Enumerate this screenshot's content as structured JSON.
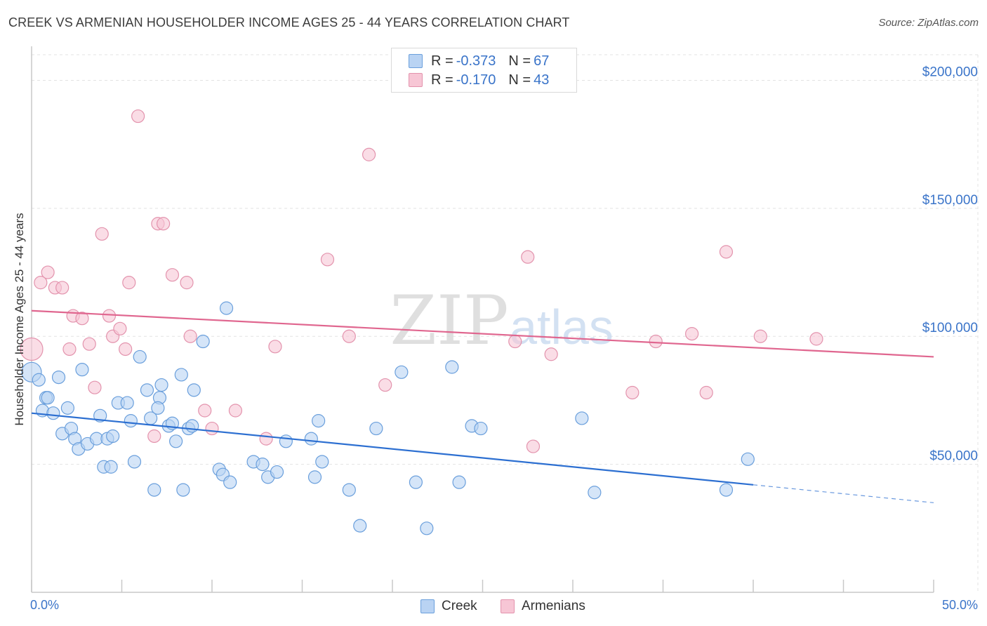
{
  "title": "CREEK VS ARMENIAN HOUSEHOLDER INCOME AGES 25 - 44 YEARS CORRELATION CHART",
  "source": "Source: ZipAtlas.com",
  "watermark": {
    "zip": "ZIP",
    "atlas": "atlas"
  },
  "legend": {
    "r_label": "R =",
    "n_label": "N =",
    "rows": [
      {
        "r": "-0.373",
        "n": "67"
      },
      {
        "r": "-0.170",
        "n": "43"
      }
    ]
  },
  "bottom_legend": [
    "Creek",
    "Armenians"
  ],
  "colors": {
    "creek_fill": "#b9d3f3",
    "creek_stroke": "#6a9fdc",
    "creek_line": "#2c6fd1",
    "arm_fill": "#f7c6d5",
    "arm_stroke": "#e393ad",
    "arm_line": "#e0668f",
    "axis_text": "#3a74c9",
    "grid": "#e3e3e3"
  },
  "chart_data": {
    "type": "scatter",
    "title": "CREEK VS ARMENIAN HOUSEHOLDER INCOME AGES 25 - 44 YEARS CORRELATION CHART",
    "xlabel": "",
    "ylabel": "Householder Income Ages 25 - 44 years",
    "xlim": [
      0,
      50
    ],
    "ylim": [
      0,
      210000
    ],
    "x_tick_labels": [
      "0.0%",
      "50.0%"
    ],
    "y_ticks": [
      {
        "value": 50000,
        "label": "$50,000"
      },
      {
        "value": 100000,
        "label": "$100,000"
      },
      {
        "value": 150000,
        "label": "$150,000"
      },
      {
        "value": 200000,
        "label": "$200,000"
      }
    ],
    "series": [
      {
        "name": "Creek",
        "r": -0.373,
        "n": 67,
        "trend": {
          "x0": 0,
          "y0": 70000,
          "x1": 40,
          "y1": 42000,
          "dash_to_x": 50,
          "dash_to_y": 35000
        },
        "points": [
          [
            0.0,
            86000,
            14
          ],
          [
            0.4,
            83000,
            9
          ],
          [
            0.8,
            76000,
            9
          ],
          [
            0.9,
            76000,
            9
          ],
          [
            0.6,
            71000,
            9
          ],
          [
            1.2,
            70000,
            9
          ],
          [
            1.5,
            84000,
            9
          ],
          [
            2.0,
            72000,
            9
          ],
          [
            1.7,
            62000,
            9
          ],
          [
            2.2,
            64000,
            9
          ],
          [
            2.4,
            60000,
            9
          ],
          [
            2.6,
            56000,
            9
          ],
          [
            3.1,
            58000,
            9
          ],
          [
            2.8,
            87000,
            9
          ],
          [
            3.6,
            60000,
            9
          ],
          [
            3.8,
            69000,
            9
          ],
          [
            4.2,
            60000,
            9
          ],
          [
            4.5,
            61000,
            9
          ],
          [
            4.8,
            74000,
            9
          ],
          [
            5.3,
            74000,
            9
          ],
          [
            5.5,
            67000,
            9
          ],
          [
            6.0,
            92000,
            9
          ],
          [
            6.4,
            79000,
            9
          ],
          [
            6.6,
            68000,
            9
          ],
          [
            7.1,
            76000,
            9
          ],
          [
            7.2,
            81000,
            9
          ],
          [
            7.6,
            65000,
            9
          ],
          [
            7.8,
            66000,
            9
          ],
          [
            8.0,
            59000,
            9
          ],
          [
            8.3,
            85000,
            9
          ],
          [
            8.7,
            64000,
            9
          ],
          [
            8.9,
            65000,
            9
          ],
          [
            9.0,
            79000,
            9
          ],
          [
            9.5,
            98000,
            9
          ],
          [
            10.4,
            48000,
            9
          ],
          [
            10.6,
            46000,
            9
          ],
          [
            10.8,
            111000,
            9
          ],
          [
            11.0,
            43000,
            9
          ],
          [
            7.0,
            72000,
            9
          ],
          [
            4.0,
            49000,
            9
          ],
          [
            4.4,
            49000,
            9
          ],
          [
            5.7,
            51000,
            9
          ],
          [
            6.8,
            40000,
            9
          ],
          [
            8.4,
            40000,
            9
          ],
          [
            12.3,
            51000,
            9
          ],
          [
            12.8,
            50000,
            9
          ],
          [
            13.1,
            45000,
            9
          ],
          [
            13.6,
            47000,
            9
          ],
          [
            14.1,
            59000,
            9
          ],
          [
            15.5,
            60000,
            9
          ],
          [
            15.9,
            67000,
            9
          ],
          [
            16.1,
            51000,
            9
          ],
          [
            15.7,
            45000,
            9
          ],
          [
            17.6,
            40000,
            9
          ],
          [
            18.2,
            26000,
            9
          ],
          [
            19.1,
            64000,
            9
          ],
          [
            20.5,
            86000,
            9
          ],
          [
            21.3,
            43000,
            9
          ],
          [
            21.9,
            25000,
            9
          ],
          [
            23.3,
            88000,
            9
          ],
          [
            23.7,
            43000,
            9
          ],
          [
            24.4,
            65000,
            9
          ],
          [
            24.9,
            64000,
            9
          ],
          [
            30.5,
            68000,
            9
          ],
          [
            31.2,
            39000,
            9
          ],
          [
            38.5,
            40000,
            9
          ],
          [
            39.7,
            52000,
            9
          ]
        ]
      },
      {
        "name": "Armenians",
        "r": -0.17,
        "n": 43,
        "trend": {
          "x0": 0,
          "y0": 110000,
          "x1": 50,
          "y1": 92000
        },
        "points": [
          [
            0.0,
            95000,
            16
          ],
          [
            0.5,
            121000,
            9
          ],
          [
            0.9,
            125000,
            9
          ],
          [
            1.3,
            119000,
            9
          ],
          [
            1.7,
            119000,
            9
          ],
          [
            2.1,
            95000,
            9
          ],
          [
            2.3,
            108000,
            9
          ],
          [
            2.8,
            107000,
            9
          ],
          [
            3.2,
            97000,
            9
          ],
          [
            3.5,
            80000,
            9
          ],
          [
            3.9,
            140000,
            9
          ],
          [
            4.3,
            108000,
            9
          ],
          [
            4.5,
            100000,
            9
          ],
          [
            4.9,
            103000,
            9
          ],
          [
            5.2,
            95000,
            9
          ],
          [
            5.4,
            121000,
            9
          ],
          [
            5.9,
            186000,
            9
          ],
          [
            6.8,
            61000,
            9
          ],
          [
            7.0,
            144000,
            9
          ],
          [
            7.3,
            144000,
            9
          ],
          [
            7.8,
            124000,
            9
          ],
          [
            8.6,
            121000,
            9
          ],
          [
            8.8,
            100000,
            9
          ],
          [
            9.6,
            71000,
            9
          ],
          [
            10.0,
            64000,
            9
          ],
          [
            11.3,
            71000,
            9
          ],
          [
            13.0,
            60000,
            9
          ],
          [
            13.5,
            96000,
            9
          ],
          [
            16.4,
            130000,
            9
          ],
          [
            17.6,
            100000,
            9
          ],
          [
            18.7,
            171000,
            9
          ],
          [
            19.6,
            81000,
            9
          ],
          [
            26.8,
            98000,
            9
          ],
          [
            27.5,
            131000,
            9
          ],
          [
            27.8,
            57000,
            9
          ],
          [
            28.8,
            93000,
            9
          ],
          [
            33.3,
            78000,
            9
          ],
          [
            34.6,
            98000,
            9
          ],
          [
            36.6,
            101000,
            9
          ],
          [
            37.4,
            78000,
            9
          ],
          [
            38.5,
            133000,
            9
          ],
          [
            40.4,
            100000,
            9
          ],
          [
            43.5,
            99000,
            9
          ]
        ]
      }
    ]
  }
}
